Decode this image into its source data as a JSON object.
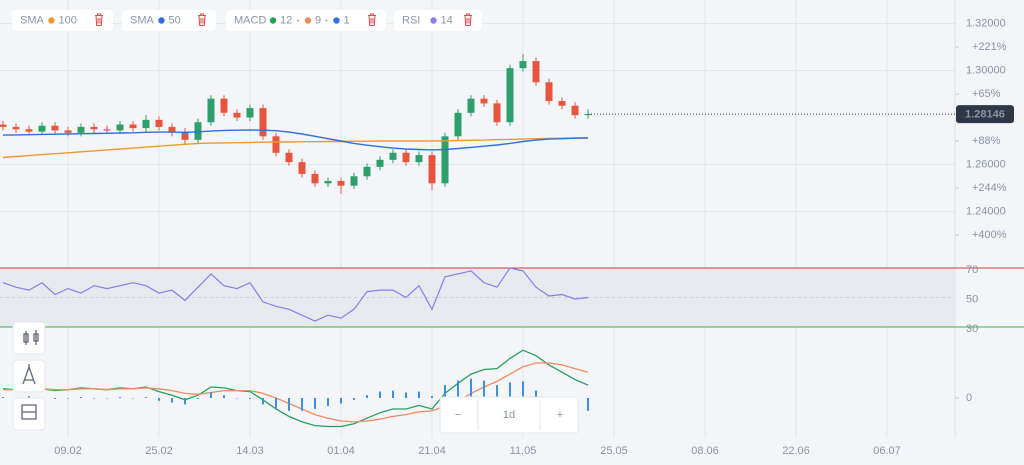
{
  "indicators": [
    {
      "name": "SMA",
      "params": [
        {
          "value": 100,
          "color": "#ef9a2f"
        }
      ]
    },
    {
      "name": "SMA",
      "params": [
        {
          "value": 50,
          "color": "#2f6fe0"
        }
      ]
    },
    {
      "name": "MACD",
      "params": [
        {
          "value": 12,
          "color": "#27a05a"
        },
        {
          "value": 9,
          "color": "#f08a60"
        },
        {
          "value": 1,
          "color": "#2f6fe0"
        }
      ]
    },
    {
      "name": "RSI",
      "params": [
        {
          "value": 14,
          "color": "#8b7cf0"
        }
      ]
    }
  ],
  "controls": {
    "zoom_out": "−",
    "interval": "1d",
    "zoom_in": "+"
  },
  "chart_data": [
    {
      "type": "candlestick",
      "up_color": "#2e9e6b",
      "down_color": "#e8553e",
      "xlim": [
        -0.23,
        73.23
      ],
      "xticks": [
        {
          "value": 5,
          "label": "09.02"
        },
        {
          "value": 12,
          "label": "25.02"
        },
        {
          "value": 19,
          "label": "14.03"
        },
        {
          "value": 26,
          "label": "01.04"
        },
        {
          "value": 33,
          "label": "21.04"
        },
        {
          "value": 40,
          "label": "11.05"
        },
        {
          "value": 47,
          "label": "25.05"
        },
        {
          "value": 54,
          "label": "08.06"
        },
        {
          "value": 61,
          "label": "22.06"
        },
        {
          "value": 68,
          "label": "06.07"
        }
      ],
      "ylim": [
        1.2215,
        1.33
      ],
      "yticks": [
        {
          "value": 1.32,
          "label": "1.32000"
        },
        {
          "value": 1.3,
          "label": "1.30000"
        },
        {
          "value": 1.26,
          "label": "1.26000"
        },
        {
          "value": 1.24,
          "label": "1.24000"
        }
      ],
      "y2lim": [
        1.2215,
        1.33
      ],
      "y2ticks": [
        {
          "value": 1.31,
          "label": "+221%"
        },
        {
          "value": 1.29,
          "label": "+65%"
        },
        {
          "value": 1.27,
          "label": "+88%"
        },
        {
          "value": 1.25,
          "label": "+244%"
        },
        {
          "value": 1.23,
          "label": "+400%"
        }
      ],
      "grid": true,
      "open": [
        1.277,
        1.276,
        1.275,
        1.274,
        1.2765,
        1.2745,
        1.2735,
        1.276,
        1.275,
        1.2745,
        1.277,
        1.2755,
        1.279,
        1.276,
        1.274,
        1.2705,
        1.278,
        1.288,
        1.282,
        1.28,
        1.284,
        1.272,
        1.265,
        1.261,
        1.256,
        1.252,
        1.253,
        1.251,
        1.255,
        1.259,
        1.262,
        1.265,
        1.261,
        1.264,
        1.252,
        1.272,
        1.282,
        1.288,
        1.286,
        1.278,
        1.301,
        1.304,
        1.295,
        1.287,
        1.285,
        1.281
      ],
      "high": [
        1.2785,
        1.2775,
        1.2765,
        1.278,
        1.278,
        1.276,
        1.2775,
        1.2775,
        1.2765,
        1.2785,
        1.2785,
        1.281,
        1.2805,
        1.2775,
        1.2755,
        1.2795,
        1.2895,
        1.2895,
        1.2835,
        1.2855,
        1.2855,
        1.2735,
        1.2665,
        1.2625,
        1.2575,
        1.2545,
        1.2545,
        1.2565,
        1.2605,
        1.2635,
        1.2665,
        1.2665,
        1.2655,
        1.2655,
        1.2735,
        1.2835,
        1.2895,
        1.2895,
        1.2875,
        1.3025,
        1.307,
        1.3055,
        1.2965,
        1.2885,
        1.2865,
        1.2835
      ],
      "low": [
        1.2745,
        1.2735,
        1.2725,
        1.2725,
        1.273,
        1.272,
        1.272,
        1.2735,
        1.273,
        1.273,
        1.274,
        1.274,
        1.2745,
        1.272,
        1.2685,
        1.269,
        1.2765,
        1.2805,
        1.2785,
        1.2785,
        1.2705,
        1.2635,
        1.2595,
        1.2545,
        1.2505,
        1.2505,
        1.2475,
        1.2495,
        1.2535,
        1.2575,
        1.2605,
        1.2595,
        1.2595,
        1.249,
        1.2505,
        1.2705,
        1.2805,
        1.2845,
        1.2765,
        1.2765,
        1.2995,
        1.2935,
        1.2855,
        1.2835,
        1.2795,
        1.2795
      ],
      "close": [
        1.276,
        1.275,
        1.274,
        1.2765,
        1.2745,
        1.2735,
        1.276,
        1.275,
        1.2745,
        1.277,
        1.2755,
        1.279,
        1.276,
        1.274,
        1.2705,
        1.278,
        1.288,
        1.282,
        1.28,
        1.284,
        1.272,
        1.265,
        1.261,
        1.256,
        1.252,
        1.253,
        1.251,
        1.255,
        1.259,
        1.262,
        1.265,
        1.261,
        1.264,
        1.252,
        1.272,
        1.282,
        1.288,
        1.286,
        1.278,
        1.301,
        1.304,
        1.295,
        1.287,
        1.285,
        1.281,
        1.28146
      ],
      "series": [
        {
          "color": "#ef9a2f",
          "values": [
            1.263,
            1.2634,
            1.2638,
            1.2642,
            1.2646,
            1.265,
            1.2654,
            1.2658,
            1.2662,
            1.2666,
            1.267,
            1.2674,
            1.2678,
            1.2682,
            1.2686,
            1.269,
            1.2691,
            1.2692,
            1.2693,
            1.2694,
            1.2695,
            1.2696,
            1.2696,
            1.2697,
            1.2697,
            1.2698,
            1.2698,
            1.2699,
            1.2699,
            1.27,
            1.27,
            1.27,
            1.27,
            1.27,
            1.2701,
            1.2702,
            1.2703,
            1.2704,
            1.2706,
            1.2707,
            1.2708,
            1.271,
            1.2711,
            1.2712,
            1.2713,
            1.2714
          ]
        },
        {
          "color": "#2f6fe0",
          "values": [
            1.2725,
            1.2726,
            1.2727,
            1.2728,
            1.2729,
            1.273,
            1.2731,
            1.2732,
            1.2733,
            1.2734,
            1.2735,
            1.2737,
            1.2738,
            1.2738,
            1.2737,
            1.2739,
            1.2742,
            1.2745,
            1.2746,
            1.2747,
            1.2746,
            1.2744,
            1.2738,
            1.273,
            1.272,
            1.271,
            1.27,
            1.269,
            1.2682,
            1.2676,
            1.267,
            1.2666,
            1.2664,
            1.2662,
            1.2664,
            1.2668,
            1.2673,
            1.2678,
            1.2683,
            1.269,
            1.2698,
            1.2704,
            1.2708,
            1.271,
            1.2712,
            1.2713
          ]
        }
      ]
    },
    {
      "type": "line",
      "ylim": [
        20,
        75
      ],
      "yticks": [
        30,
        50,
        70
      ],
      "level_colors": [
        "#3cb043",
        "#c8ccd6",
        "#d03a3a"
      ],
      "series": [
        {
          "color": "#8b7cf0",
          "values": [
            60,
            57,
            55,
            60,
            52,
            56,
            53,
            58,
            56,
            58,
            60,
            58,
            53,
            55,
            48,
            57,
            66,
            58,
            56,
            60,
            47,
            44,
            42,
            38,
            34,
            38,
            36,
            42,
            54,
            55,
            55,
            50,
            58,
            42,
            64,
            66,
            68,
            60,
            57,
            70,
            68,
            57,
            51,
            52,
            49,
            50
          ]
        }
      ]
    },
    {
      "type": "macd",
      "ylim": [
        -3.5,
        6
      ],
      "yticks": [
        0
      ],
      "series": [
        {
          "color": "#27a05a",
          "values": [
            1.0,
            0.9,
            1.2,
            1.0,
            0.8,
            0.9,
            1.1,
            1.0,
            0.9,
            1.1,
            1.0,
            1.2,
            0.7,
            0.3,
            -0.2,
            0.3,
            1.2,
            1.1,
            0.8,
            0.7,
            -0.2,
            -1.2,
            -2.0,
            -2.6,
            -3.0,
            -3.1,
            -3.1,
            -2.8,
            -2.2,
            -1.6,
            -1.2,
            -1.2,
            -0.8,
            -1.2,
            0.5,
            1.6,
            2.6,
            3.1,
            3.2,
            4.3,
            5.2,
            4.6,
            3.6,
            2.8,
            2.0,
            1.4
          ]
        },
        {
          "color": "#f08a60",
          "values": [
            0.9,
            0.9,
            1.0,
            1.0,
            0.9,
            0.9,
            1.0,
            1.0,
            0.9,
            1.0,
            1.0,
            1.1,
            1.0,
            0.8,
            0.5,
            0.4,
            0.6,
            0.8,
            0.8,
            0.8,
            0.5,
            0.0,
            -0.6,
            -1.2,
            -1.8,
            -2.2,
            -2.5,
            -2.6,
            -2.5,
            -2.3,
            -2.0,
            -1.8,
            -1.5,
            -1.4,
            -0.9,
            -0.3,
            0.5,
            1.2,
            1.8,
            2.6,
            3.4,
            3.8,
            3.8,
            3.6,
            3.2,
            2.8
          ]
        },
        {
          "color": "#3f8fe0",
          "bars": true,
          "values": [
            0.1,
            0,
            0.2,
            0,
            -0.1,
            0,
            0.1,
            0,
            0,
            0.1,
            0,
            0.1,
            -0.3,
            -0.5,
            -0.7,
            -0.1,
            0.6,
            0.3,
            0,
            -0.1,
            -0.7,
            -1.2,
            -1.4,
            -1.4,
            -1.2,
            -0.9,
            -0.6,
            -0.2,
            0.3,
            0.7,
            0.8,
            0.6,
            0.7,
            0.2,
            1.4,
            1.9,
            2.1,
            1.9,
            1.4,
            1.7,
            1.8,
            0.8,
            -0.2,
            -0.8,
            -1.2,
            -1.4
          ]
        }
      ]
    }
  ]
}
